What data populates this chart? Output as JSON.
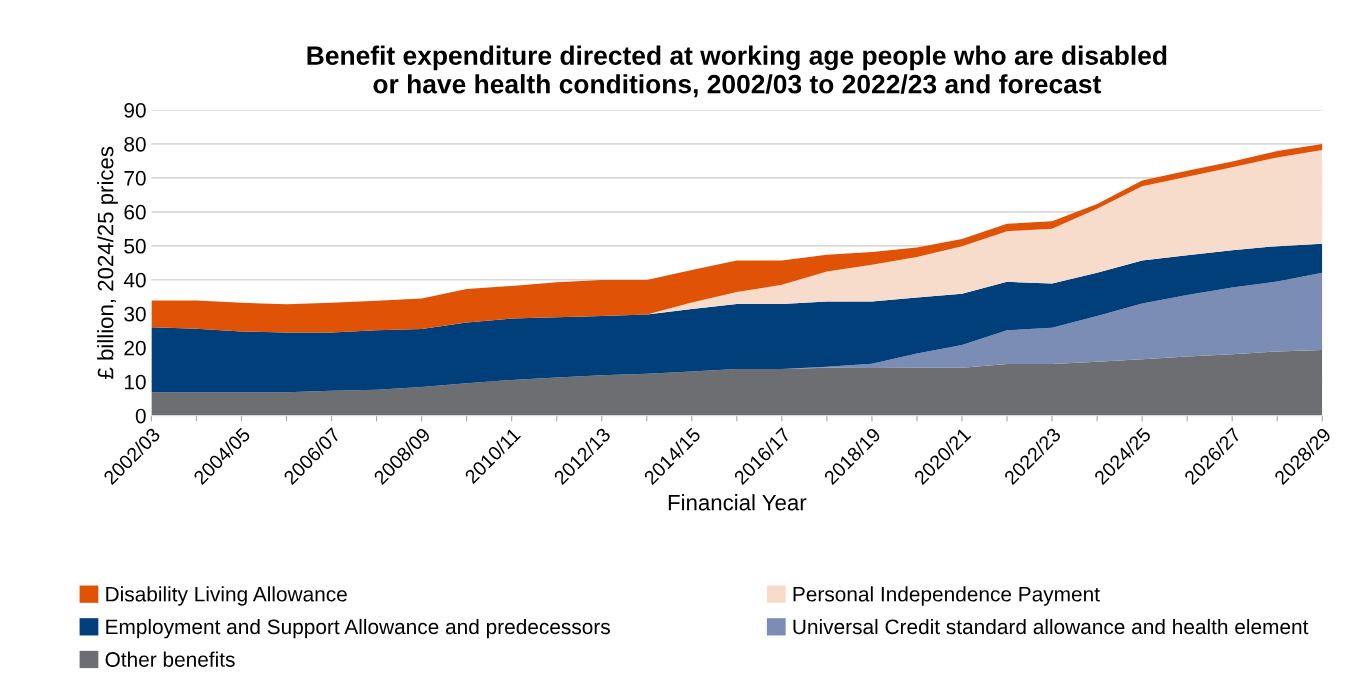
{
  "chart_data": {
    "type": "area",
    "stacked": true,
    "title": "Benefit expenditure directed at working age people who are disabled\nor have health conditions, 2002/03 to 2022/23 and forecast",
    "xlabel": "Financial Year",
    "ylabel": "£ billion, 2024/25 prices",
    "categories": [
      "2002/03",
      null,
      "2004/05",
      null,
      "2006/07",
      null,
      "2008/09",
      null,
      "2010/11",
      null,
      "2012/13",
      null,
      "2014/15",
      null,
      "2016/17",
      null,
      "2018/19",
      null,
      "2020/21",
      null,
      "2022/23",
      null,
      "2024/25",
      null,
      "2026/27",
      null,
      "2028/29"
    ],
    "series": [
      {
        "name": "Other benefits",
        "color": "#6d6e71",
        "values": [
          6.9,
          6.9,
          6.9,
          6.9,
          7.3,
          7.6,
          8.4,
          9.5,
          10.5,
          11.2,
          11.9,
          12.3,
          13.0,
          13.7,
          13.7,
          14.1,
          14.0,
          14.1,
          14.1,
          15.2,
          15.2,
          15.9,
          16.6,
          17.4,
          18.1,
          18.9,
          19.3
        ]
      },
      {
        "name": "Universal Credit standard allowance and health element",
        "color": "#7b8db4",
        "values": [
          0,
          0,
          0,
          0,
          0,
          0,
          0,
          0,
          0,
          0,
          0,
          0,
          0,
          0,
          0,
          0.3,
          1.3,
          4.2,
          6.7,
          9.9,
          10.7,
          13.4,
          16.4,
          18.1,
          19.6,
          20.6,
          22.8
        ]
      },
      {
        "name": "Employment and Support Allowance and predecessors",
        "color": "#003f7a",
        "values": [
          19.1,
          18.7,
          17.9,
          17.6,
          17.2,
          17.5,
          17.1,
          17.9,
          18.1,
          17.8,
          17.4,
          17.5,
          18.4,
          19.2,
          19.2,
          19.2,
          18.3,
          16.5,
          15.1,
          14.3,
          13.0,
          12.8,
          12.7,
          11.7,
          11.0,
          10.4,
          8.5
        ]
      },
      {
        "name": "Personal Independence Payment",
        "color": "#f8dccb",
        "values": [
          0,
          0,
          0,
          0,
          0,
          0,
          0,
          0,
          0,
          0,
          0,
          0,
          1.9,
          3.5,
          5.6,
          8.8,
          10.8,
          11.9,
          14.0,
          14.9,
          16.1,
          18.8,
          21.8,
          23.1,
          24.4,
          26.1,
          27.6
        ]
      },
      {
        "name": "Disability Living Allowance",
        "color": "#e05206",
        "values": [
          7.9,
          8.3,
          8.4,
          8.3,
          8.7,
          8.7,
          9.0,
          9.9,
          9.6,
          10.3,
          10.6,
          10.1,
          9.6,
          9.3,
          7.2,
          5.0,
          3.8,
          2.8,
          2.1,
          2.2,
          2.2,
          1.4,
          1.7,
          1.8,
          1.7,
          1.9,
          1.8
        ]
      }
    ],
    "ylim": [
      0,
      90
    ],
    "yticks": [
      0,
      10,
      20,
      30,
      40,
      50,
      60,
      70,
      80,
      90
    ],
    "grid": "y",
    "legend": "bottom"
  }
}
